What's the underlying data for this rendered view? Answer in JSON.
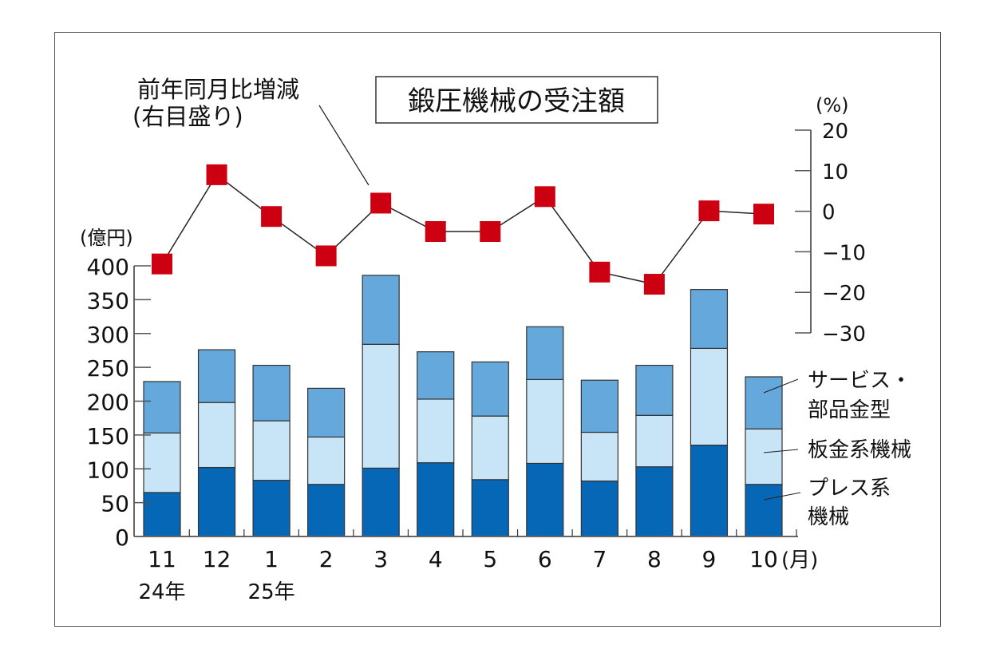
{
  "chart_data": {
    "type": "bar",
    "title": "鍛圧機械の受注額",
    "ylabel": "(億円)",
    "y2label": "(%)",
    "xlabel_unit": "(月)",
    "ylim": [
      0,
      400
    ],
    "yticks": [
      0,
      50,
      100,
      150,
      200,
      250,
      300,
      350,
      400
    ],
    "y2lim": [
      -30,
      20
    ],
    "y2ticks": [
      -30,
      -20,
      -10,
      0,
      10,
      20
    ],
    "y2tick_labels": [
      "−30",
      "−20",
      "−10",
      "0",
      "10",
      "20"
    ],
    "categories": [
      "11",
      "12",
      "1",
      "2",
      "3",
      "4",
      "5",
      "6",
      "7",
      "8",
      "9",
      "10"
    ],
    "year_labels": [
      {
        "category": "11",
        "label": "24年"
      },
      {
        "category": "1",
        "label": "25年"
      }
    ],
    "series": [
      {
        "name": "プレス系機械",
        "label_lines": [
          "プレス系",
          "機械"
        ],
        "color": "#0767b7",
        "values": [
          65,
          102,
          83,
          77,
          101,
          109,
          84,
          108,
          82,
          103,
          135,
          77
        ]
      },
      {
        "name": "板金系機械",
        "label_lines": [
          "板金系機械"
        ],
        "color": "#c8e5f8",
        "values": [
          88,
          96,
          88,
          70,
          183,
          94,
          94,
          124,
          72,
          76,
          143,
          82
        ]
      },
      {
        "name": "サービス・部品金型",
        "label_lines": [
          "サービス・",
          "部品金型"
        ],
        "color": "#65a8dc",
        "values": [
          76,
          78,
          82,
          72,
          102,
          70,
          80,
          78,
          77,
          74,
          87,
          77
        ]
      }
    ],
    "line_series": {
      "name": "前年同月比増減",
      "label_lines": [
        "前年同月比増減",
        "(右目盛り)"
      ],
      "axis": "right",
      "color": "#cc0010",
      "values": [
        -13,
        9,
        -1.3,
        -11,
        2,
        -5,
        -5,
        3.6,
        -15,
        -18,
        0.1,
        -0.7
      ]
    },
    "grid": false,
    "legend": "right-side callouts"
  }
}
